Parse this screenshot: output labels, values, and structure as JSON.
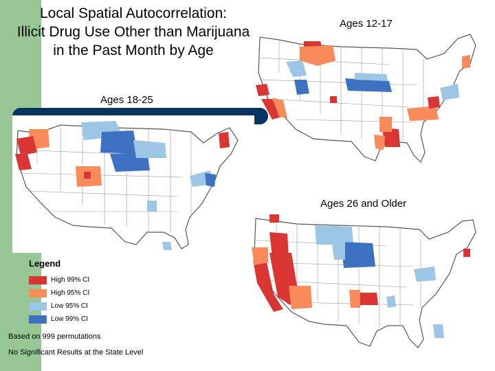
{
  "title": {
    "line1": "Local Spatial Autocorrelation:",
    "line2": "Illicit Drug Use Other than Marijuana",
    "line3": "in the Past Month by Age"
  },
  "colors": {
    "high99": "#d93533",
    "high95": "#f98b5b",
    "low95": "#9cc6e3",
    "low99": "#3d71c1",
    "band": "#97c795",
    "bar": "#083462"
  },
  "panels": {
    "ages_12_17": {
      "label": "Ages 12-17"
    },
    "ages_18_25": {
      "label": "Ages 18-25"
    },
    "ages_26_older": {
      "label": "Ages 26 and Older"
    }
  },
  "legend": {
    "title": "Legend",
    "items": [
      {
        "label": "High 99% CI",
        "color": "#d93533"
      },
      {
        "label": "High 95% CI",
        "color": "#f98b5b"
      },
      {
        "label": "Low 95% CI",
        "color": "#9cc6e3"
      },
      {
        "label": "Low 99% CI",
        "color": "#3d71c1"
      }
    ]
  },
  "notes": {
    "permutations": "Based on 999 permutations",
    "state_level": "No Significant Results at the State Level"
  }
}
